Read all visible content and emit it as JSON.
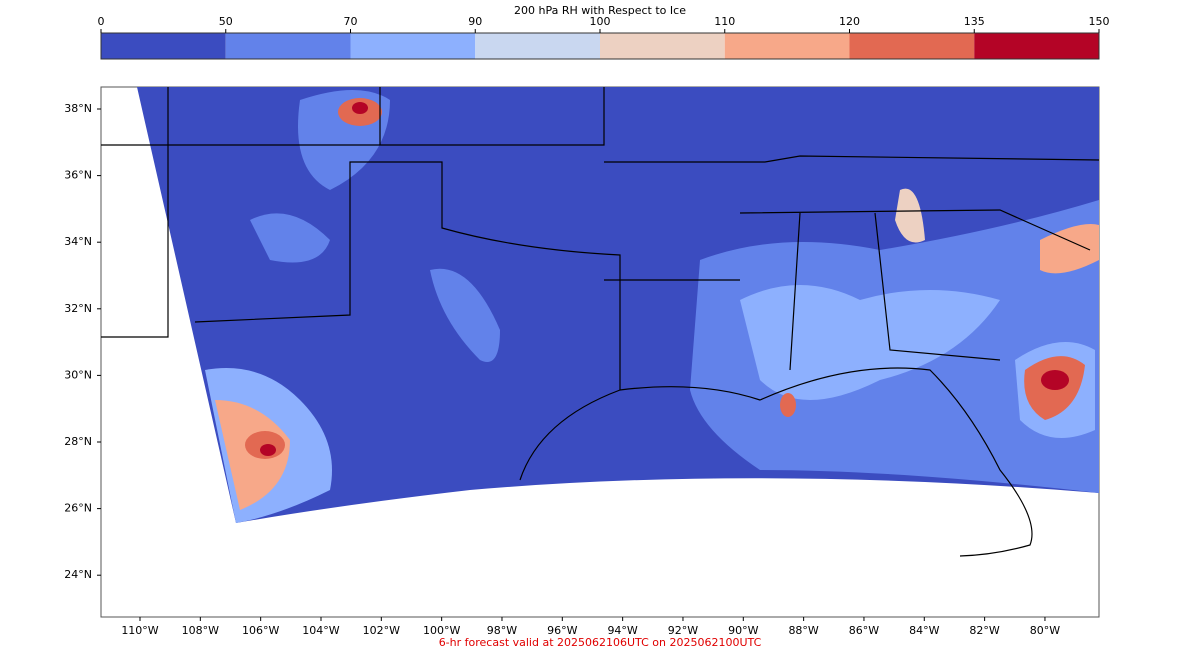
{
  "colorbar": {
    "title": "200 hPa RH with Respect to Ice",
    "ticks": [
      0,
      50,
      70,
      90,
      100,
      110,
      120,
      135,
      150
    ],
    "colors": [
      "#3b4cc0",
      "#6282ea",
      "#8db0fe",
      "#c9d7f0",
      "#edd1c2",
      "#f7a889",
      "#e26952",
      "#b40426"
    ]
  },
  "map": {
    "lat_labels": [
      "38°N",
      "36°N",
      "34°N",
      "32°N",
      "30°N",
      "28°N",
      "26°N",
      "24°N"
    ],
    "lon_labels": [
      "110°W",
      "108°W",
      "106°W",
      "104°W",
      "102°W",
      "100°W",
      "98°W",
      "96°W",
      "94°W",
      "92°W",
      "90°W",
      "88°W",
      "86°W",
      "84°W",
      "82°W",
      "80°W"
    ]
  },
  "footer": "6-hr forecast valid at 2025062106UTC on 2025062100UTC"
}
